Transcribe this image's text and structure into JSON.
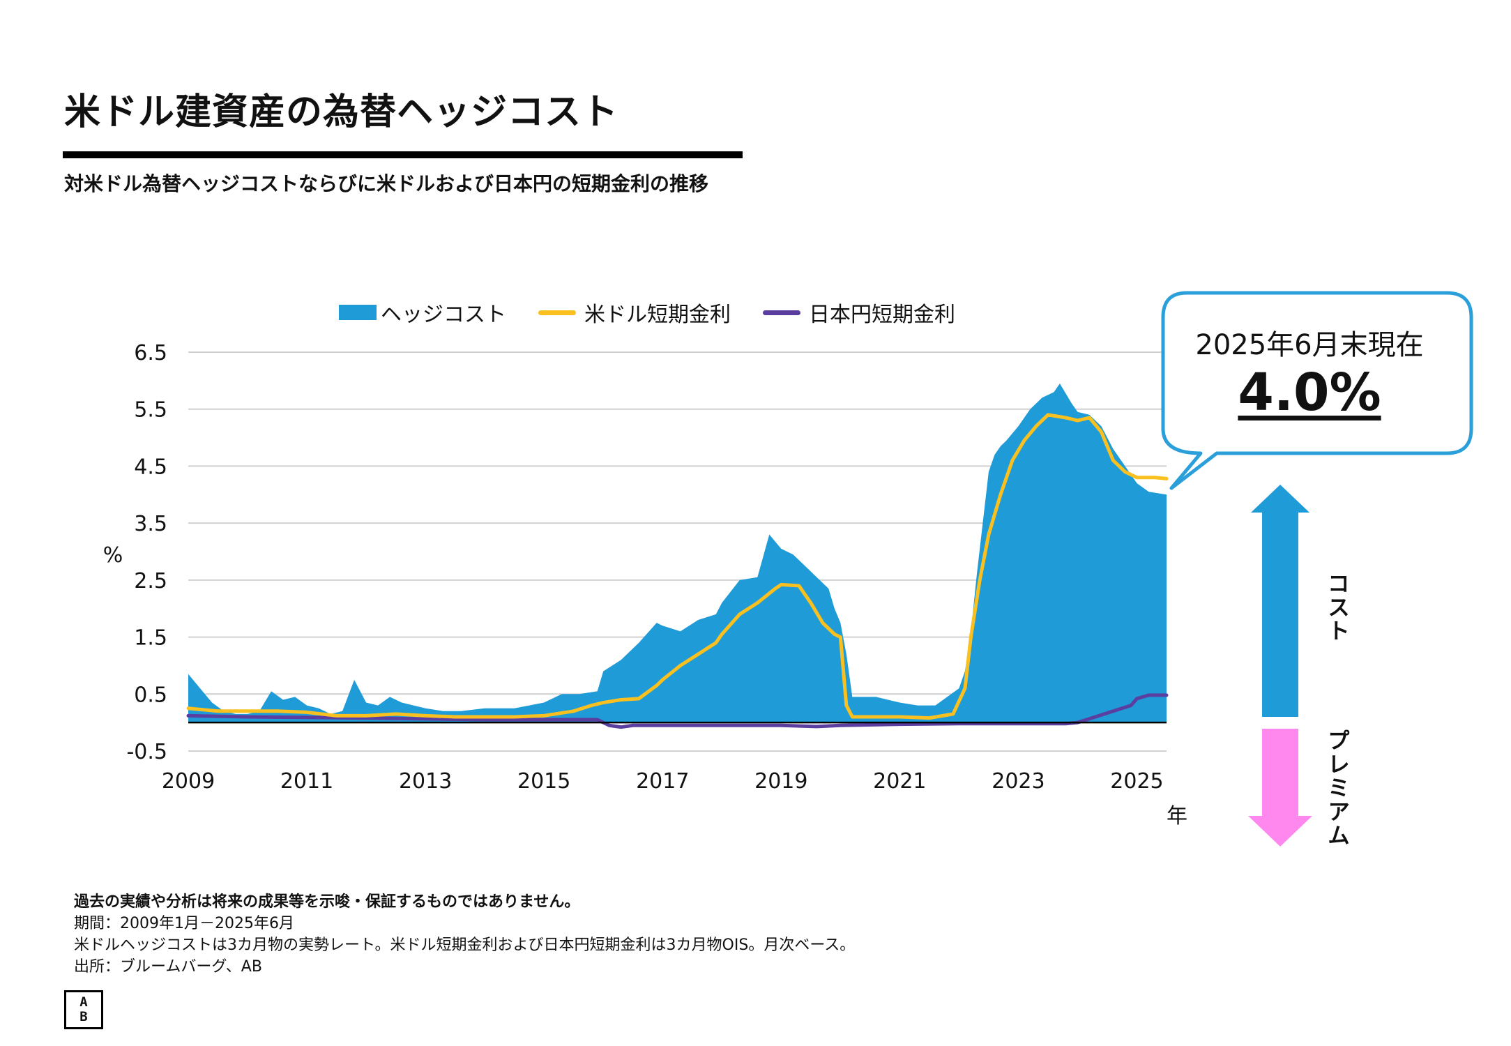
{
  "page": {
    "title": "米ドル建資産の為替ヘッジコスト",
    "subtitle": "対米ドル為替ヘッジコストならびに米ドルおよび日本円の短期金利の推移"
  },
  "colors": {
    "hedge_cost": "#1f9bd7",
    "usd_rate": "#f9c01f",
    "jpy_rate": "#5b3fa0",
    "premium_arrow": "#ff88ee",
    "callout_border": "#2b9fd9"
  },
  "legend": {
    "hedge_cost": "ヘッジコスト",
    "usd_rate": "米ドル短期金利",
    "jpy_rate": "日本円短期金利"
  },
  "callout": {
    "date": "2025年6月末現在",
    "value": "4.0%"
  },
  "arrows": {
    "cost_label": "コスト",
    "premium_label": "プレミアム"
  },
  "footnotes": {
    "disclaimer": "過去の実績や分析は将来の成果等を示唆・保証するものではありません。",
    "period": "期間：2009年1月－2025年6月",
    "method": "米ドルヘッジコストは3カ月物の実勢レート。米ドル短期金利および日本円短期金利は3カ月物OIS。月次ベース。",
    "source": "出所：ブルームバーグ、AB"
  },
  "logo": {
    "line1": "A",
    "line2": "B"
  },
  "chart_data": {
    "type": "area",
    "title": "",
    "xlabel": "年",
    "ylabel": "%",
    "xlim": [
      2009.0,
      2025.5
    ],
    "ylim": [
      -0.5,
      6.5
    ],
    "yticks": [
      "6.5",
      "5.5",
      "4.5",
      "3.5",
      "2.5",
      "1.5",
      "0.5",
      "-0.5"
    ],
    "xticks": [
      "2009",
      "2011",
      "2013",
      "2015",
      "2017",
      "2019",
      "2021",
      "2023",
      "2025"
    ],
    "grid": true,
    "legend_position": "top",
    "series": [
      {
        "name": "ヘッジコスト",
        "type": "area",
        "x": [
          2009.0,
          2009.2,
          2009.4,
          2009.6,
          2009.8,
          2010.0,
          2010.2,
          2010.4,
          2010.6,
          2010.8,
          2011.0,
          2011.2,
          2011.4,
          2011.6,
          2011.8,
          2012.0,
          2012.2,
          2012.4,
          2012.6,
          2012.8,
          2013.0,
          2013.3,
          2013.6,
          2014.0,
          2014.5,
          2015.0,
          2015.3,
          2015.6,
          2015.9,
          2016.0,
          2016.3,
          2016.6,
          2016.9,
          2017.0,
          2017.3,
          2017.6,
          2017.9,
          2018.0,
          2018.3,
          2018.6,
          2018.8,
          2019.0,
          2019.2,
          2019.4,
          2019.6,
          2019.8,
          2019.9,
          2020.0,
          2020.1,
          2020.2,
          2020.4,
          2020.6,
          2020.8,
          2021.0,
          2021.3,
          2021.6,
          2021.8,
          2022.0,
          2022.1,
          2022.2,
          2022.3,
          2022.4,
          2022.5,
          2022.6,
          2022.7,
          2022.8,
          2023.0,
          2023.2,
          2023.4,
          2023.6,
          2023.7,
          2023.9,
          2024.0,
          2024.2,
          2024.4,
          2024.6,
          2024.8,
          2025.0,
          2025.2,
          2025.5
        ],
        "values": [
          0.85,
          0.6,
          0.35,
          0.2,
          0.15,
          0.15,
          0.2,
          0.55,
          0.4,
          0.45,
          0.3,
          0.25,
          0.15,
          0.2,
          0.75,
          0.35,
          0.3,
          0.45,
          0.35,
          0.3,
          0.25,
          0.2,
          0.2,
          0.25,
          0.25,
          0.35,
          0.5,
          0.5,
          0.55,
          0.9,
          1.1,
          1.4,
          1.75,
          1.7,
          1.6,
          1.8,
          1.9,
          2.1,
          2.5,
          2.55,
          3.3,
          3.05,
          2.95,
          2.75,
          2.55,
          2.35,
          2.0,
          1.75,
          1.2,
          0.45,
          0.45,
          0.45,
          0.4,
          0.35,
          0.3,
          0.3,
          0.45,
          0.6,
          0.9,
          1.6,
          2.6,
          3.5,
          4.4,
          4.7,
          4.85,
          4.95,
          5.2,
          5.5,
          5.7,
          5.8,
          5.95,
          5.6,
          5.45,
          5.4,
          5.2,
          4.8,
          4.5,
          4.2,
          4.05,
          4.0
        ]
      },
      {
        "name": "米ドル短期金利",
        "type": "line",
        "x": [
          2009.0,
          2009.5,
          2010.0,
          2010.5,
          2011.0,
          2011.5,
          2012.0,
          2012.5,
          2013.0,
          2013.5,
          2014.0,
          2014.5,
          2015.0,
          2015.5,
          2015.8,
          2016.0,
          2016.3,
          2016.6,
          2016.9,
          2017.0,
          2017.3,
          2017.6,
          2017.9,
          2018.0,
          2018.3,
          2018.6,
          2018.9,
          2019.0,
          2019.3,
          2019.5,
          2019.7,
          2019.9,
          2020.0,
          2020.1,
          2020.2,
          2020.5,
          2021.0,
          2021.5,
          2021.9,
          2022.1,
          2022.2,
          2022.35,
          2022.5,
          2022.7,
          2022.9,
          2023.1,
          2023.3,
          2023.5,
          2023.8,
          2024.0,
          2024.2,
          2024.4,
          2024.6,
          2024.8,
          2025.0,
          2025.3,
          2025.5
        ],
        "values": [
          0.25,
          0.2,
          0.2,
          0.2,
          0.18,
          0.12,
          0.12,
          0.15,
          0.12,
          0.1,
          0.1,
          0.1,
          0.12,
          0.2,
          0.3,
          0.35,
          0.4,
          0.42,
          0.65,
          0.75,
          1.0,
          1.2,
          1.4,
          1.55,
          1.9,
          2.1,
          2.35,
          2.42,
          2.4,
          2.1,
          1.75,
          1.55,
          1.5,
          0.3,
          0.1,
          0.1,
          0.1,
          0.08,
          0.15,
          0.6,
          1.5,
          2.5,
          3.3,
          4.0,
          4.6,
          4.95,
          5.2,
          5.4,
          5.35,
          5.3,
          5.35,
          5.1,
          4.6,
          4.4,
          4.3,
          4.3,
          4.28
        ]
      },
      {
        "name": "日本円短期金利",
        "type": "line",
        "x": [
          2009.0,
          2010.0,
          2012.0,
          2014.0,
          2015.5,
          2015.9,
          2016.1,
          2016.3,
          2016.5,
          2017.0,
          2018.0,
          2019.0,
          2019.6,
          2020.0,
          2021.0,
          2022.0,
          2023.0,
          2023.8,
          2024.0,
          2024.3,
          2024.6,
          2024.9,
          2025.0,
          2025.2,
          2025.5
        ],
        "values": [
          0.12,
          0.1,
          0.08,
          0.05,
          0.05,
          0.05,
          -0.05,
          -0.08,
          -0.05,
          -0.05,
          -0.05,
          -0.05,
          -0.07,
          -0.05,
          -0.03,
          -0.02,
          -0.02,
          -0.02,
          0.0,
          0.1,
          0.2,
          0.3,
          0.42,
          0.48,
          0.48
        ]
      }
    ]
  }
}
